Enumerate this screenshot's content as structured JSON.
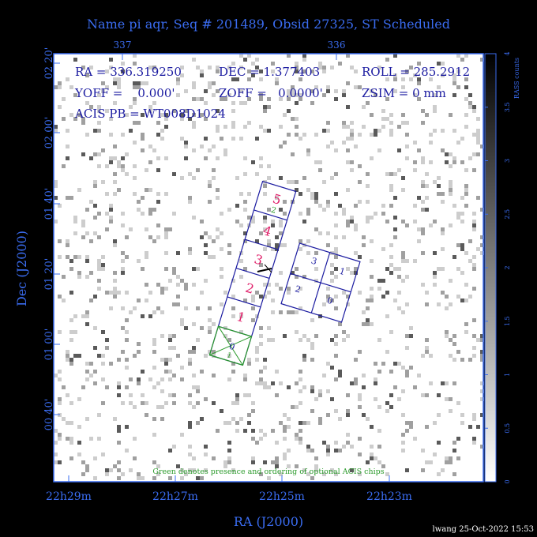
{
  "title": "Name pi aqr, Seq # 201489, Obsid 27325, ST Scheduled",
  "info": {
    "ra": "RA = 336.319250",
    "dec": "DEC = 1.377403",
    "roll": "ROLL = 285.2912",
    "yoff": "YOFF =    0.000'",
    "zoff": "ZOFF =   0.0000'",
    "zsim": "ZSIM = 0 mm",
    "acis_pb": "ACIS PB = WT008D1024"
  },
  "axes": {
    "xlabel": "RA (J2000)",
    "ylabel": "Dec (J2000)",
    "x_ticks": [
      "22h29m",
      "22h27m",
      "22h25m",
      "22h23m"
    ],
    "top_ticks": [
      "337",
      "336"
    ],
    "y_ticks": [
      "02 20'",
      "02 00'",
      "01 40'",
      "01 20'",
      "01 00'",
      "00 40'"
    ]
  },
  "colorbar": {
    "label": "RASS counts",
    "ticks": [
      "0",
      "0.5",
      "1",
      "1.5",
      "2",
      "2.5",
      "3",
      "3.5",
      "4"
    ]
  },
  "acis_s_chips": [
    {
      "num": "5",
      "sub": "2"
    },
    {
      "num": "4",
      "sub": ""
    },
    {
      "num": "3",
      "sub": ""
    },
    {
      "num": "2",
      "sub": ""
    },
    {
      "num": "1",
      "sub": ""
    },
    {
      "num": "0",
      "sub": "1"
    }
  ],
  "acis_i_chips": [
    "3",
    "1",
    "2",
    "0"
  ],
  "note": "Green denotes presence and ordering of optional ACIS chips",
  "footer": "lwang 25-Oct-2022 15:53",
  "colors": {
    "axis": "#3a6cf0",
    "text": "#1a1aa0",
    "chip_number": "#e0206a",
    "optional": "#2a9a2a"
  }
}
